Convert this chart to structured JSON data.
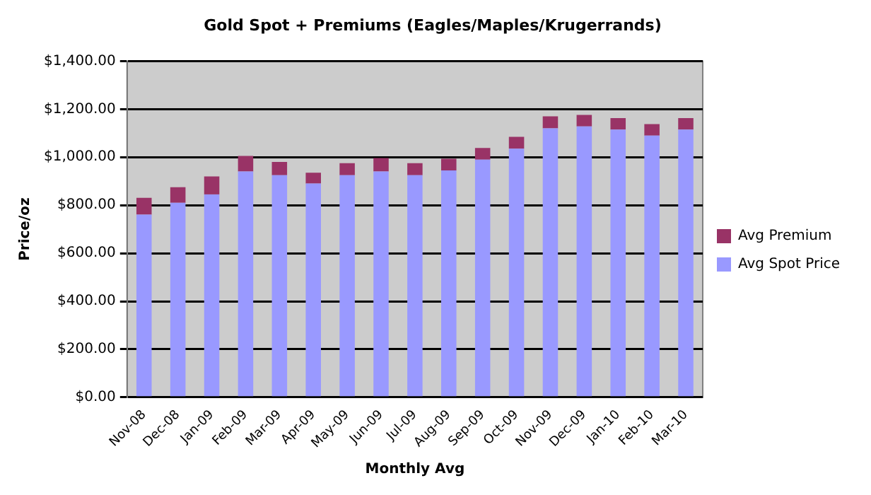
{
  "chart_data": {
    "type": "bar",
    "title": "Gold Spot + Premiums (Eagles/Maples/Krugerrands)",
    "xlabel": "Monthly Avg",
    "ylabel": "Price/oz",
    "categories": [
      "Nov-08",
      "Dec-08",
      "Jan-09",
      "Feb-09",
      "Mar-09",
      "Apr-09",
      "May-09",
      "Jun-09",
      "Jul-09",
      "Aug-09",
      "Sep-09",
      "Oct-09",
      "Nov-09",
      "Dec-09",
      "Jan-10",
      "Feb-10",
      "Mar-10"
    ],
    "stacked": true,
    "series": [
      {
        "name": "Avg Spot Price",
        "color": "#9999ff",
        "values": [
          761,
          810,
          845,
          940,
          925,
          890,
          925,
          940,
          925,
          945,
          990,
          1035,
          1120,
          1128,
          1115,
          1090,
          1115
        ]
      },
      {
        "name": "Avg Premium",
        "color": "#993366",
        "values": [
          70,
          65,
          75,
          65,
          55,
          45,
          50,
          56,
          50,
          48,
          48,
          50,
          50,
          48,
          48,
          48,
          48
        ]
      }
    ],
    "ylim": [
      0,
      1400
    ],
    "yticks": [
      {
        "value": 0,
        "label": "$0.00"
      },
      {
        "value": 200,
        "label": "$200.00"
      },
      {
        "value": 400,
        "label": "$400.00"
      },
      {
        "value": 600,
        "label": "$600.00"
      },
      {
        "value": 800,
        "label": "$800.00"
      },
      {
        "value": 1000,
        "label": "$1,000.00"
      },
      {
        "value": 1200,
        "label": "$1,200.00"
      },
      {
        "value": 1400,
        "label": "$1,400.00"
      }
    ],
    "grid": "y",
    "legend": "right"
  }
}
